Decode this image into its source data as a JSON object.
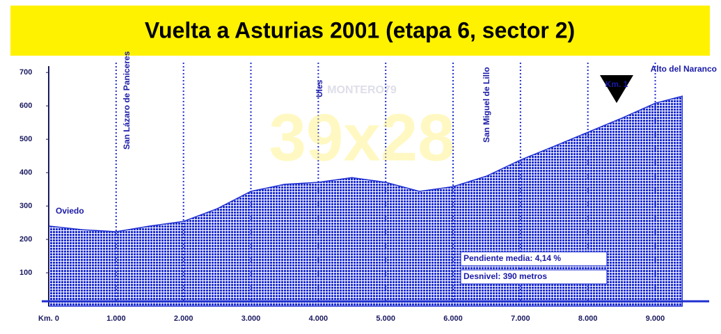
{
  "chart_data": {
    "type": "area",
    "title": "Vuelta a Asturias 2001 (etapa 6, sector 2)",
    "x": [
      0,
      500,
      1000,
      1500,
      2000,
      2500,
      3000,
      3500,
      4000,
      4500,
      5000,
      5500,
      6000,
      6500,
      7000,
      7500,
      8000,
      8500,
      9000,
      9400
    ],
    "values": [
      240,
      229,
      223,
      240,
      254,
      292,
      344,
      365,
      371,
      385,
      371,
      344,
      358,
      390,
      438,
      479,
      521,
      563,
      608,
      629
    ],
    "color": "#1f2fd0",
    "xlim": [
      0,
      9800
    ],
    "ylim": [
      0,
      740
    ],
    "xticks": [
      {
        "value": 0,
        "label": "Km. 0"
      },
      {
        "value": 1000,
        "label": "1.000"
      },
      {
        "value": 2000,
        "label": "2.000"
      },
      {
        "value": 3000,
        "label": "3.000"
      },
      {
        "value": 4000,
        "label": "4.000"
      },
      {
        "value": 5000,
        "label": "5.000"
      },
      {
        "value": 6000,
        "label": "6.000"
      },
      {
        "value": 7000,
        "label": "7.000"
      },
      {
        "value": 8000,
        "label": "8.000"
      },
      {
        "value": 9000,
        "label": "9.000"
      }
    ],
    "yticks": [
      100,
      200,
      300,
      400,
      500,
      600,
      700
    ],
    "grid": true,
    "annotations": [
      "Oviedo",
      "San Lázaro de Paniceres",
      "Ules",
      "San Miguel de Lillo",
      "Alto del Naranco",
      "Km. 1",
      "Pendiente media: 4,14 %",
      "Desnivel: 390 metros",
      "39x28",
      "MONTERO79"
    ]
  }
}
